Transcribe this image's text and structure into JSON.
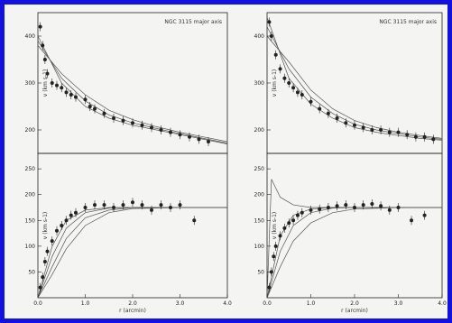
{
  "colors": {
    "frame": "#1111e0",
    "ink": "#222222",
    "background": "#f4f4f2"
  },
  "chart_data": [
    {
      "type": "scatter",
      "panel": "left-top",
      "title": "NGC 3115 major axis",
      "ylabel": "v (km s-1)",
      "xlim": [
        0,
        4
      ],
      "ylim": [
        150,
        450
      ],
      "yticks": [
        "400",
        "300",
        "200"
      ],
      "series": [
        {
          "x": [
            0.05,
            0.1,
            0.15,
            0.2,
            0.3,
            0.4,
            0.5,
            0.6,
            0.7,
            0.8,
            1.0,
            1.1,
            1.2,
            1.4,
            1.6,
            1.8,
            2.0,
            2.2,
            2.4,
            2.6,
            2.8,
            3.0,
            3.2,
            3.4,
            3.6
          ],
          "y": [
            420,
            380,
            350,
            320,
            300,
            295,
            290,
            280,
            275,
            270,
            265,
            250,
            245,
            235,
            225,
            220,
            215,
            210,
            205,
            200,
            195,
            190,
            185,
            180,
            175
          ]
        }
      ],
      "models": [
        {
          "x": [
            0,
            0.5,
            1,
            1.5,
            2,
            2.5,
            3,
            3.5,
            4
          ],
          "y": [
            400,
            300,
            250,
            225,
            210,
            200,
            190,
            180,
            170
          ]
        },
        {
          "x": [
            0,
            0.5,
            1,
            1.5,
            2,
            2.5,
            3,
            3.5,
            4
          ],
          "y": [
            390,
            310,
            262,
            232,
            215,
            203,
            192,
            182,
            172
          ]
        },
        {
          "x": [
            0,
            0.5,
            1,
            1.5,
            2,
            2.5,
            3,
            3.5,
            4
          ],
          "y": [
            380,
            320,
            275,
            242,
            222,
            207,
            195,
            185,
            175
          ]
        }
      ]
    },
    {
      "type": "scatter",
      "panel": "left-bottom",
      "xlabel": "r (arcmin)",
      "ylabel": "v (km s-1)",
      "xlim": [
        0,
        4
      ],
      "ylim": [
        0,
        280
      ],
      "xticks": [
        "0.0",
        "1.0",
        "2.0",
        "3.0",
        "4.0"
      ],
      "yticks": [
        "250",
        "200",
        "150",
        "100",
        "50"
      ],
      "series": [
        {
          "x": [
            0.05,
            0.1,
            0.15,
            0.2,
            0.3,
            0.4,
            0.5,
            0.6,
            0.7,
            0.8,
            1.0,
            1.2,
            1.4,
            1.6,
            1.8,
            2.0,
            2.2,
            2.4,
            2.6,
            2.8,
            3.0,
            3.3
          ],
          "y": [
            20,
            40,
            70,
            90,
            110,
            130,
            140,
            150,
            160,
            165,
            175,
            180,
            180,
            175,
            180,
            185,
            180,
            170,
            180,
            175,
            180,
            150
          ]
        }
      ],
      "models": [
        {
          "x": [
            0,
            0.3,
            0.6,
            1,
            1.5,
            2,
            3,
            4
          ],
          "y": [
            0,
            100,
            150,
            170,
            175,
            175,
            175,
            175
          ]
        },
        {
          "x": [
            0,
            0.3,
            0.6,
            1,
            1.5,
            2,
            3,
            4
          ],
          "y": [
            0,
            80,
            135,
            165,
            174,
            175,
            175,
            175
          ]
        },
        {
          "x": [
            0,
            0.3,
            0.6,
            1,
            1.5,
            2,
            3,
            4
          ],
          "y": [
            0,
            60,
            115,
            155,
            170,
            175,
            175,
            175
          ]
        },
        {
          "x": [
            0,
            0.3,
            0.6,
            1,
            1.5,
            2,
            3,
            4
          ],
          "y": [
            0,
            45,
            95,
            140,
            165,
            173,
            175,
            175
          ]
        }
      ]
    },
    {
      "type": "scatter",
      "panel": "right-top",
      "title": "NGC 3115 major axis",
      "ylabel": "v (km s-1)",
      "xlim": [
        0,
        4
      ],
      "ylim": [
        150,
        450
      ],
      "yticks": [
        "400",
        "300",
        "200"
      ],
      "series": [
        {
          "x": [
            0.05,
            0.1,
            0.2,
            0.3,
            0.4,
            0.5,
            0.6,
            0.7,
            0.8,
            1.0,
            1.2,
            1.4,
            1.6,
            1.8,
            2.0,
            2.2,
            2.4,
            2.6,
            2.8,
            3.0,
            3.2,
            3.4,
            3.6,
            3.8
          ],
          "y": [
            430,
            400,
            360,
            330,
            310,
            300,
            290,
            280,
            275,
            260,
            245,
            235,
            225,
            215,
            210,
            205,
            200,
            200,
            195,
            195,
            190,
            185,
            185,
            180
          ]
        }
      ],
      "models": [
        {
          "x": [
            0,
            0.5,
            1,
            1.5,
            2,
            2.5,
            3,
            3.5,
            4
          ],
          "y": [
            440,
            310,
            255,
            225,
            205,
            195,
            188,
            182,
            178
          ]
        },
        {
          "x": [
            0,
            0.5,
            1,
            1.5,
            2,
            2.5,
            3,
            3.5,
            4
          ],
          "y": [
            420,
            330,
            270,
            235,
            212,
            200,
            192,
            185,
            180
          ]
        },
        {
          "x": [
            0,
            0.5,
            1,
            1.5,
            2,
            2.5,
            3,
            3.5,
            4
          ],
          "y": [
            400,
            345,
            285,
            245,
            220,
            205,
            195,
            188,
            182
          ]
        }
      ]
    },
    {
      "type": "scatter",
      "panel": "right-bottom",
      "xlabel": "r (arcmin)",
      "ylabel": "v (km s-1)",
      "xlim": [
        0,
        4
      ],
      "ylim": [
        0,
        280
      ],
      "xticks": [
        "0.0",
        "1.0",
        "2.0",
        "3.0",
        "4.0"
      ],
      "yticks": [
        "250",
        "200",
        "150",
        "100",
        "50"
      ],
      "series": [
        {
          "x": [
            0.05,
            0.1,
            0.15,
            0.2,
            0.3,
            0.4,
            0.5,
            0.6,
            0.7,
            0.8,
            1.0,
            1.2,
            1.4,
            1.6,
            1.8,
            2.0,
            2.2,
            2.4,
            2.6,
            2.8,
            3.0,
            3.3,
            3.6
          ],
          "y": [
            20,
            50,
            80,
            100,
            120,
            135,
            145,
            150,
            160,
            165,
            170,
            172,
            175,
            178,
            180,
            175,
            180,
            182,
            178,
            170,
            175,
            150,
            160
          ]
        }
      ],
      "models": [
        {
          "x": [
            0,
            0.1,
            0.3,
            0.6,
            1,
            1.5,
            2,
            3,
            4
          ],
          "y": [
            0,
            230,
            195,
            180,
            175,
            175,
            175,
            175,
            175
          ]
        },
        {
          "x": [
            0,
            0.3,
            0.6,
            1,
            1.5,
            2,
            3,
            4
          ],
          "y": [
            0,
            120,
            160,
            172,
            175,
            175,
            175,
            175
          ]
        },
        {
          "x": [
            0,
            0.3,
            0.6,
            1,
            1.5,
            2,
            3,
            4
          ],
          "y": [
            0,
            90,
            140,
            165,
            174,
            175,
            175,
            175
          ]
        },
        {
          "x": [
            0,
            0.3,
            0.6,
            1,
            1.5,
            2,
            3,
            4
          ],
          "y": [
            0,
            60,
            110,
            145,
            165,
            172,
            175,
            175
          ]
        }
      ]
    }
  ]
}
